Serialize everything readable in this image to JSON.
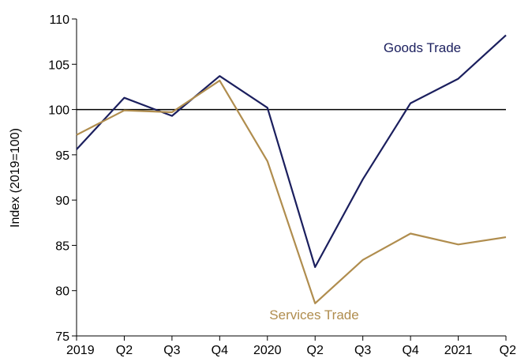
{
  "chart_data": {
    "type": "line",
    "title": "",
    "xlabel": "",
    "ylabel": "Index (2019=100)",
    "categories": [
      "2019",
      "Q2",
      "Q3",
      "Q4",
      "2020",
      "Q2",
      "Q3",
      "Q4",
      "2021",
      "Q2"
    ],
    "ylim": [
      75,
      110
    ],
    "yticks": [
      75,
      80,
      85,
      90,
      95,
      100,
      105,
      110
    ],
    "reference_line": 100,
    "grid": false,
    "legend": "none",
    "series": [
      {
        "name": "Goods Trade",
        "color": "#1b1f5e",
        "values": [
          95.6,
          101.3,
          99.3,
          103.7,
          100.2,
          82.6,
          92.3,
          100.7,
          103.4,
          108.2
        ]
      },
      {
        "name": "Services Trade",
        "color": "#b08d4e",
        "values": [
          97.2,
          99.9,
          99.7,
          103.2,
          94.3,
          78.6,
          83.4,
          86.3,
          85.1,
          85.9
        ]
      }
    ]
  }
}
